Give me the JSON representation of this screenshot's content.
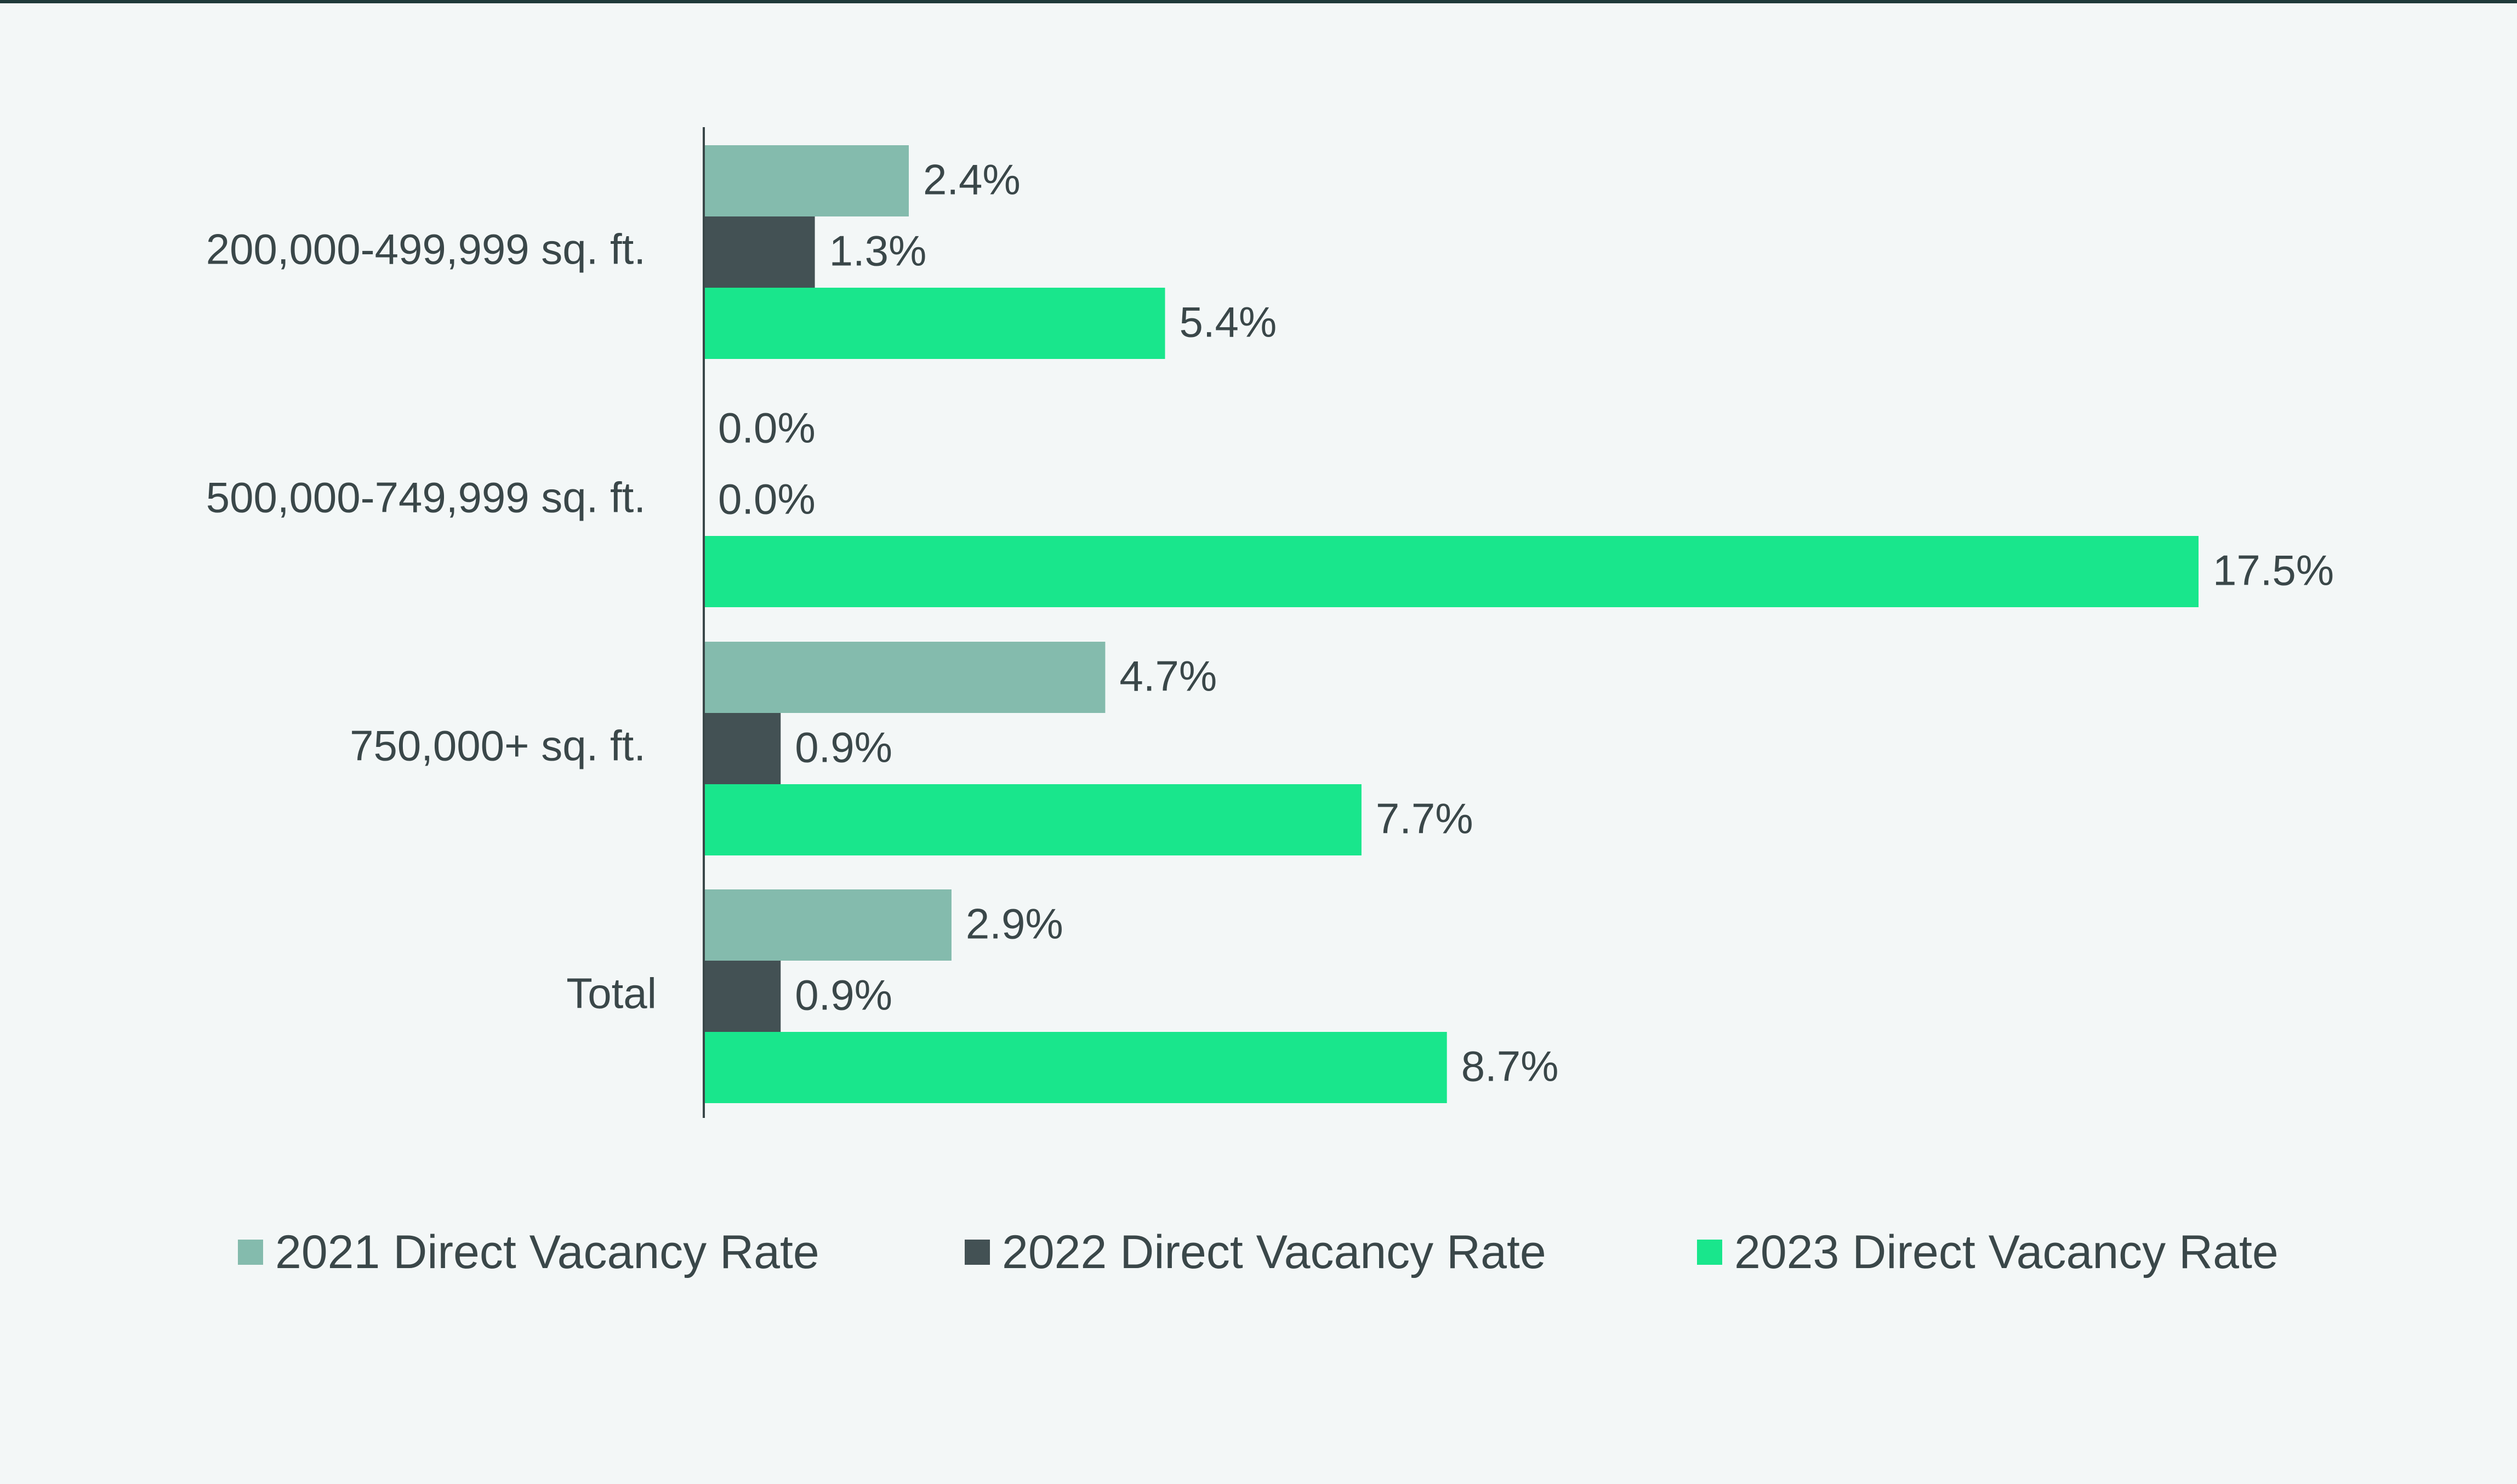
{
  "chart_data": {
    "type": "bar",
    "orientation": "horizontal",
    "categories": [
      "200,000-499,999 sq. ft.",
      "500,000-749,999 sq. ft.",
      "750,000+ sq. ft.",
      "Total"
    ],
    "series": [
      {
        "name": "2021 Direct Vacancy Rate",
        "color": "#84bbad",
        "values": [
          2.4,
          0.0,
          4.7,
          2.9
        ],
        "labels": [
          "2.4%",
          "0.0%",
          "4.7%",
          "2.9%"
        ]
      },
      {
        "name": "2022 Direct Vacancy Rate",
        "color": "#435154",
        "values": [
          1.3,
          0.0,
          0.9,
          0.9
        ],
        "labels": [
          "1.3%",
          "0.0%",
          "0.9%",
          "0.9%"
        ]
      },
      {
        "name": "2023 Direct Vacancy Rate",
        "color": "#19e68c",
        "values": [
          5.4,
          17.5,
          7.7,
          8.7
        ],
        "labels": [
          "5.4%",
          "17.5%",
          "7.7%",
          "8.7%"
        ]
      }
    ],
    "unit": "%",
    "xlim": [
      0,
      17.5
    ],
    "grid": false,
    "legend_position": "bottom"
  }
}
